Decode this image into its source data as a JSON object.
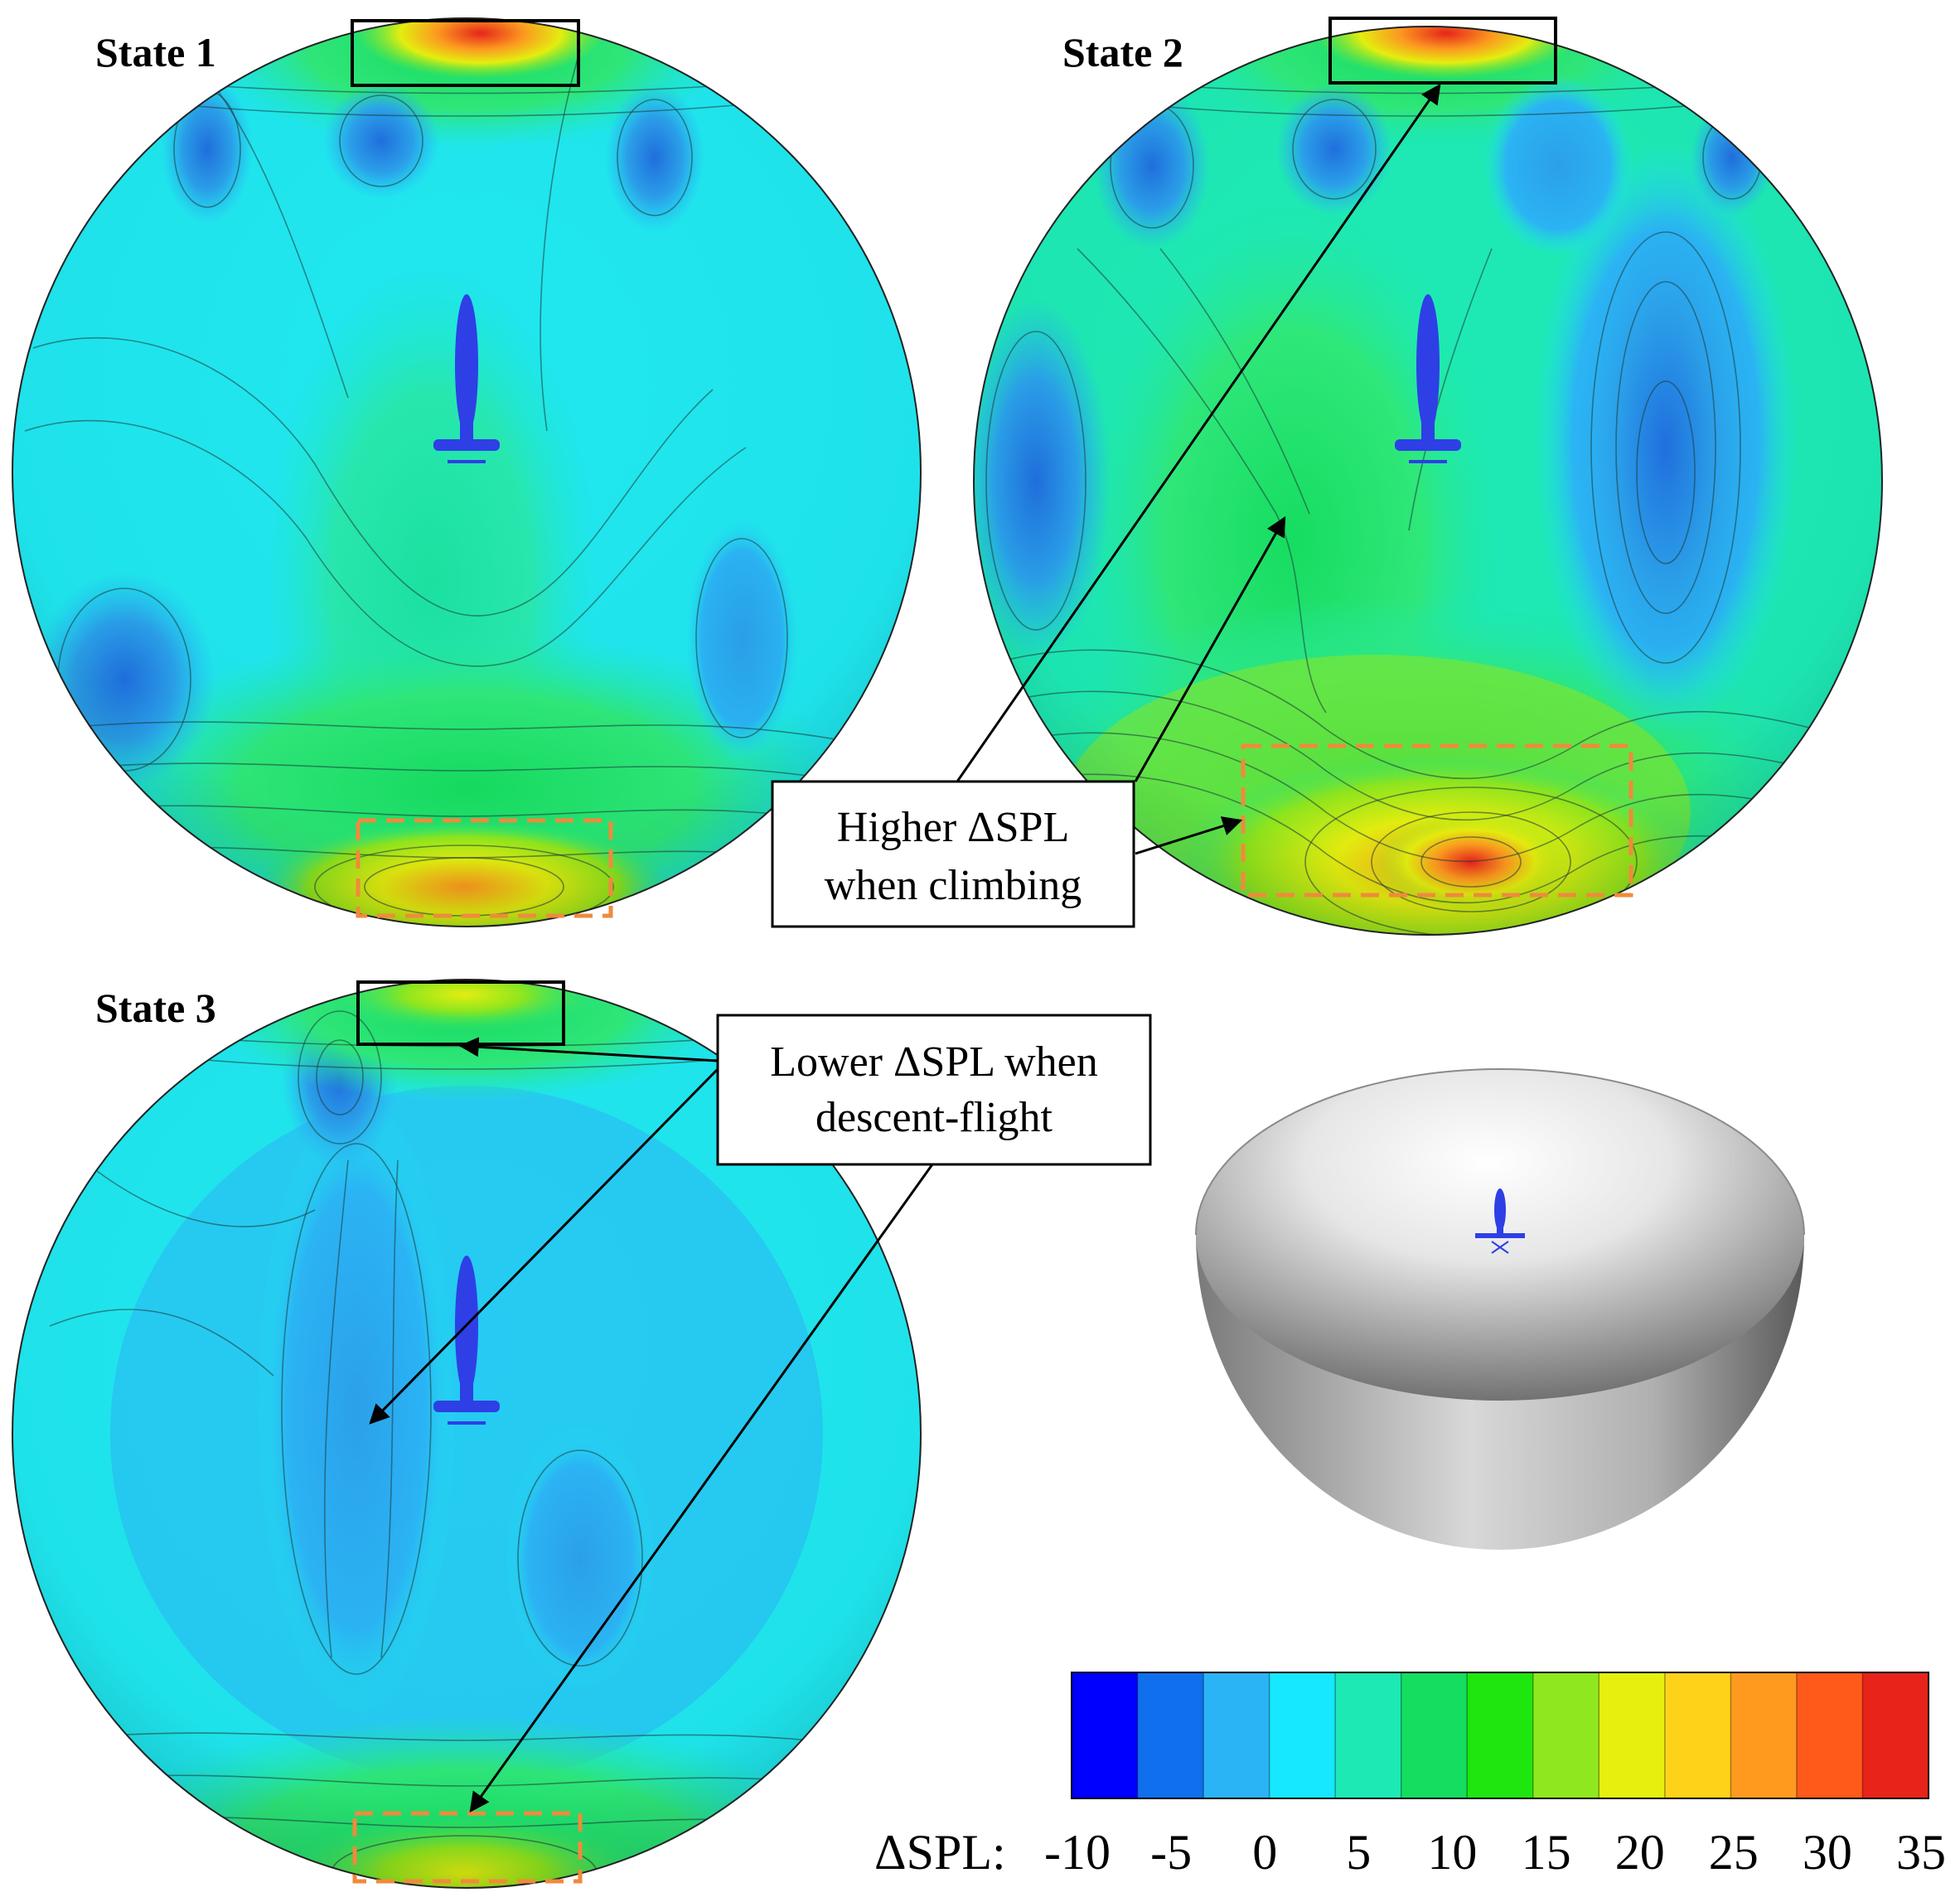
{
  "panels": [
    {
      "label": "State 1"
    },
    {
      "label": "State 2"
    },
    {
      "label": "State 3"
    }
  ],
  "annotations": {
    "climbing": {
      "line1": "Higher ΔSPL",
      "line2": "when climbing"
    },
    "descent": {
      "line1": "Lower ΔSPL when",
      "line2": "descent-flight"
    }
  },
  "colorbar": {
    "label": "ΔSPL:",
    "ticks": [
      "-10",
      "-5",
      "0",
      "5",
      "10",
      "15",
      "20",
      "25",
      "30",
      "35"
    ],
    "colors": [
      "#0000ff",
      "#0f6fee",
      "#2ab4f5",
      "#16e8ff",
      "#1de9b4",
      "#15dd60",
      "#1fe60f",
      "#8fe81e",
      "#e6f00f",
      "#ffd21a",
      "#ff9a1f",
      "#ff5a1a",
      "#e8241a"
    ]
  },
  "colors": {
    "sphere_base": "#1fe6ee",
    "low_region": "#2aa0ea",
    "very_low_region": "#1f6fde",
    "mid_region": "#2ee87a",
    "high_region": "#ff7a1a",
    "peak_region": "#e8241a",
    "aircraft": "#2e3fe6",
    "dashed_box": "#f08a3c",
    "solid_box": "#000000"
  }
}
